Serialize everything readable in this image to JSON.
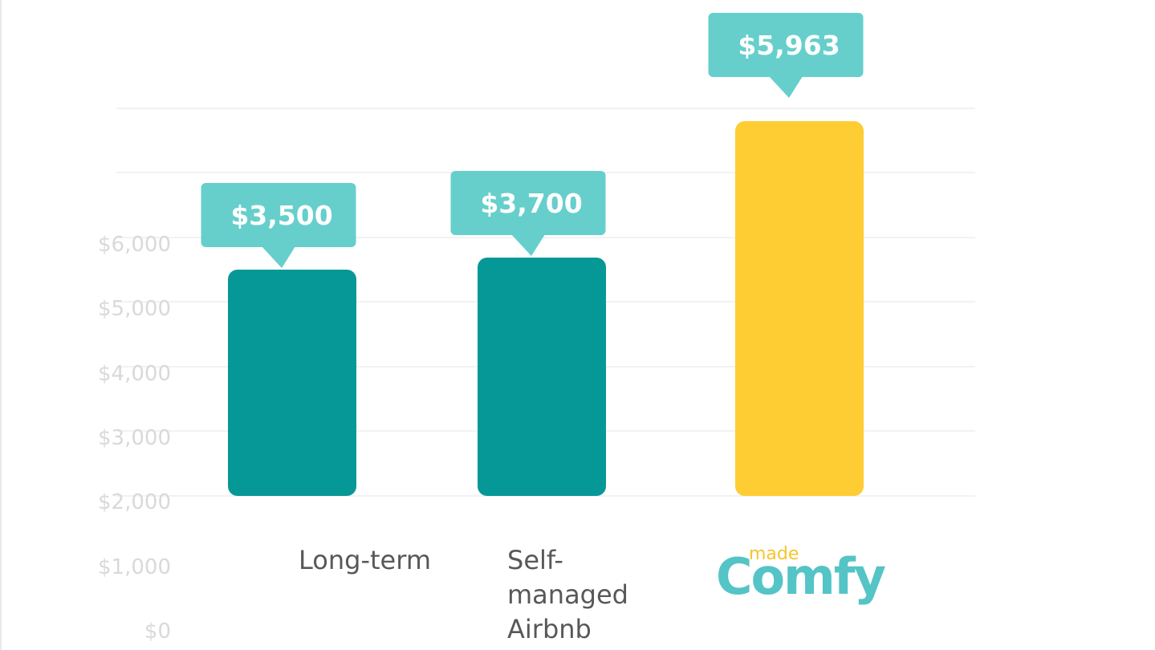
{
  "chart_data": {
    "type": "bar",
    "categories": [
      "Long-term",
      "Self-managed Airbnb",
      "madeComfy"
    ],
    "category_lines": [
      [
        "Long-term"
      ],
      [
        "Self-",
        "managed",
        "Airbnb"
      ],
      []
    ],
    "values": [
      3500,
      3700,
      5963
    ],
    "value_labels": [
      "$3,500",
      "$3,700",
      "$5,963"
    ],
    "bar_colors": [
      "#069896",
      "#069896",
      "#fecd34"
    ],
    "callout_color": "#66cfcc",
    "yticks": [
      "$0",
      "$1,000",
      "$2,000",
      "$3,000",
      "$4,000",
      "$5,000",
      "$6,000"
    ],
    "ylim": [
      0,
      6000
    ],
    "grid": true,
    "title": "",
    "xlabel": "",
    "ylabel": ""
  },
  "logo": {
    "name": "madeComfy-logo",
    "text_made": "made",
    "text_comfy": "Comfy"
  }
}
